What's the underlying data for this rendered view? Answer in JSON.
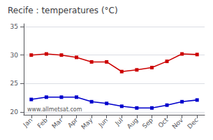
{
  "chart_data": {
    "type": "line",
    "title": "Recife : temperatures (°C)",
    "categories": [
      "Jan",
      "Feb",
      "Mar",
      "Apr",
      "May",
      "Jun",
      "Jul",
      "Aug",
      "Sep",
      "Oct",
      "Nov",
      "Dec"
    ],
    "series": [
      {
        "color": "#cc0000",
        "marker": "square",
        "values": [
          30.0,
          30.2,
          30.0,
          29.6,
          28.8,
          28.8,
          27.1,
          27.4,
          27.8,
          28.9,
          30.2,
          30.1
        ]
      },
      {
        "color": "#0000cc",
        "marker": "square",
        "values": [
          22.2,
          22.6,
          22.6,
          22.6,
          21.8,
          21.5,
          21.0,
          20.7,
          20.7,
          21.2,
          21.8,
          22.1
        ]
      }
    ],
    "ylim": [
      19.5,
      35.5
    ],
    "yticks": [
      20,
      25,
      30,
      35
    ],
    "grid": true,
    "annotations": [
      "www.allmetsat.com"
    ]
  }
}
